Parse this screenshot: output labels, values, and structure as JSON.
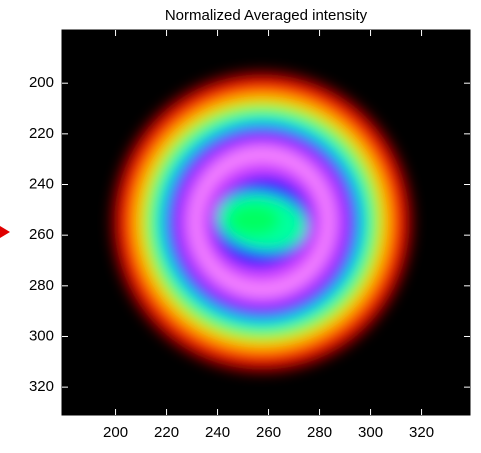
{
  "chart_data": {
    "type": "heatmap",
    "title": "Normalized Averaged intensity",
    "xlim": [
      179,
      339
    ],
    "ylim": [
      179,
      331
    ],
    "xticks": [
      200,
      220,
      240,
      260,
      280,
      300,
      320
    ],
    "yticks": [
      200,
      220,
      240,
      260,
      280,
      300,
      320
    ],
    "y_reversed": true
  }
}
